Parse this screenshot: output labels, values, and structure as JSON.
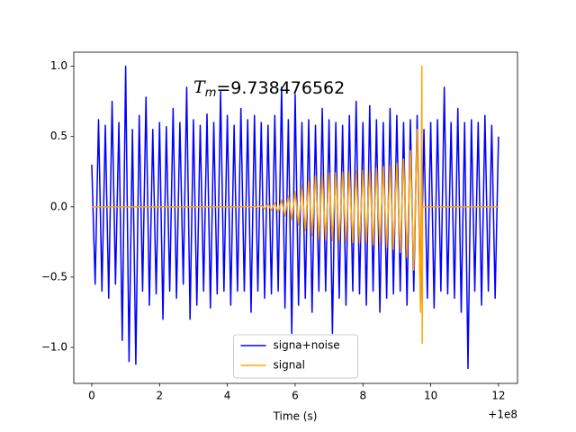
{
  "chart_data": {
    "type": "line",
    "annotation": {
      "symbol": "T",
      "subscript": "m",
      "text": "=9.738476562"
    },
    "xlabel": "Time (s)",
    "x_offset_text": "+1e8",
    "xlim": [
      -0.53,
      12.56
    ],
    "ylim": [
      -1.256,
      1.1
    ],
    "xticks": [
      0,
      2,
      4,
      6,
      8,
      10,
      12
    ],
    "yticks": [
      {
        "value": -1.0,
        "label": "−1.0"
      },
      {
        "value": -0.5,
        "label": "−0.5"
      },
      {
        "value": 0.0,
        "label": "0.0"
      },
      {
        "value": 0.5,
        "label": "0.5"
      },
      {
        "value": 1.0,
        "label": "1.0"
      }
    ],
    "legend": "lower center",
    "series": [
      {
        "name": "signa+noise",
        "color": "#0000ff",
        "x": [
          0,
          0.1,
          0.2,
          0.3,
          0.4,
          0.5,
          0.6,
          0.7,
          0.8,
          0.9,
          1.0,
          1.1,
          1.2,
          1.3,
          1.4,
          1.5,
          1.6,
          1.7,
          1.8,
          1.9,
          2.0,
          2.1,
          2.2,
          2.3,
          2.4,
          2.5,
          2.6,
          2.7,
          2.8,
          2.9,
          3.0,
          3.1,
          3.2,
          3.3,
          3.4,
          3.5,
          3.6,
          3.7,
          3.8,
          3.9,
          4.0,
          4.1,
          4.2,
          4.3,
          4.4,
          4.5,
          4.6,
          4.7,
          4.8,
          4.9,
          5.0,
          5.1,
          5.2,
          5.3,
          5.4,
          5.5,
          5.6,
          5.7,
          5.8,
          5.9,
          6.0,
          6.1,
          6.2,
          6.3,
          6.4,
          6.5,
          6.6,
          6.7,
          6.8,
          6.9,
          7.0,
          7.1,
          7.2,
          7.3,
          7.4,
          7.5,
          7.6,
          7.7,
          7.8,
          7.9,
          8.0,
          8.1,
          8.2,
          8.3,
          8.4,
          8.5,
          8.6,
          8.7,
          8.8,
          8.9,
          9.0,
          9.1,
          9.2,
          9.3,
          9.4,
          9.5,
          9.6,
          9.7,
          9.8,
          9.9,
          10.0,
          10.1,
          10.2,
          10.3,
          10.4,
          10.5,
          10.6,
          10.7,
          10.8,
          10.9,
          11.0,
          11.1,
          11.2,
          11.3,
          11.4,
          11.5,
          11.6,
          11.7,
          11.8,
          11.9,
          12.0
        ],
        "values": [
          0.3,
          -0.55,
          0.62,
          -0.6,
          0.58,
          -0.65,
          0.75,
          -0.55,
          0.6,
          -0.95,
          1.0,
          -1.1,
          0.55,
          -1.12,
          0.65,
          -0.6,
          0.78,
          -0.7,
          0.55,
          -0.62,
          0.6,
          -0.8,
          0.57,
          -0.6,
          0.7,
          -0.65,
          0.6,
          -0.55,
          0.85,
          -0.8,
          0.62,
          -0.7,
          0.58,
          -0.6,
          0.66,
          -0.72,
          0.6,
          -0.62,
          0.82,
          -0.6,
          0.65,
          -0.7,
          0.58,
          -0.6,
          0.7,
          -0.6,
          0.62,
          -0.75,
          0.65,
          -0.6,
          0.6,
          -0.65,
          0.58,
          -0.62,
          0.65,
          -0.6,
          0.85,
          -0.72,
          0.62,
          -0.9,
          0.8,
          -0.7,
          0.6,
          -0.65,
          0.62,
          -0.75,
          0.58,
          -0.6,
          0.7,
          -0.6,
          0.62,
          -0.9,
          0.6,
          -0.65,
          0.58,
          -0.7,
          0.65,
          -0.6,
          0.75,
          -0.62,
          0.6,
          -0.7,
          0.72,
          -0.6,
          0.62,
          -0.75,
          0.6,
          -0.65,
          0.7,
          -0.62,
          0.65,
          -0.6,
          0.6,
          -0.7,
          0.62,
          -0.6,
          0.65,
          -0.7,
          0.55,
          -0.65,
          0.6,
          -0.72,
          0.62,
          -0.6,
          0.85,
          -0.62,
          0.6,
          -0.65,
          0.7,
          -0.75,
          0.6,
          -1.15,
          0.62,
          -0.6,
          0.6,
          -0.7,
          0.65,
          -0.6,
          0.58,
          -0.65,
          0.5
        ]
      },
      {
        "name": "signal",
        "color": "#ffa500",
        "x": [
          0,
          4.5,
          4.6,
          4.7,
          4.8,
          4.9,
          5.0,
          5.1,
          5.2,
          5.3,
          5.4,
          5.5,
          5.6,
          5.7,
          5.8,
          5.9,
          6.0,
          6.1,
          6.2,
          6.3,
          6.4,
          6.5,
          6.6,
          6.7,
          6.8,
          6.9,
          7.0,
          7.1,
          7.2,
          7.3,
          7.4,
          7.5,
          7.6,
          7.7,
          7.8,
          7.9,
          8.0,
          8.1,
          8.2,
          8.3,
          8.4,
          8.5,
          8.6,
          8.7,
          8.8,
          8.9,
          9.0,
          9.1,
          9.2,
          9.3,
          9.4,
          9.5,
          9.6,
          9.7,
          9.74,
          9.75,
          9.76,
          12
        ],
        "values": [
          0,
          0,
          0.002,
          -0.003,
          0.005,
          -0.007,
          0.01,
          -0.015,
          0.02,
          -0.025,
          0.03,
          -0.04,
          0.05,
          -0.065,
          0.08,
          -0.095,
          0.11,
          -0.13,
          0.15,
          -0.17,
          0.19,
          -0.205,
          0.22,
          -0.228,
          0.235,
          -0.238,
          0.24,
          -0.242,
          0.244,
          -0.246,
          0.248,
          -0.25,
          0.252,
          -0.254,
          0.256,
          -0.258,
          0.26,
          -0.264,
          0.268,
          -0.272,
          0.276,
          -0.28,
          0.285,
          -0.29,
          0.297,
          -0.303,
          0.31,
          -0.325,
          0.34,
          -0.36,
          0.4,
          -0.45,
          0.55,
          -0.75,
          1.0,
          -0.97,
          0,
          0
        ]
      }
    ]
  }
}
